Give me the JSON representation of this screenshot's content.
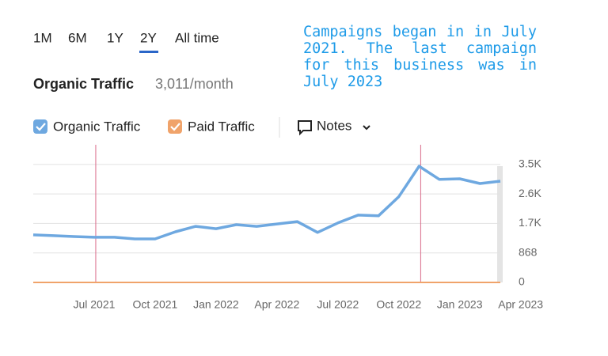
{
  "tabs": {
    "items": [
      "1M",
      "6M",
      "1Y",
      "2Y",
      "All time"
    ],
    "active": 3
  },
  "header": {
    "title": "Organic Traffic",
    "value": "3,011/month"
  },
  "annotation": "Campaigns began in in July 2021. The last campaign for this business was in July 2023",
  "notes": "Notes",
  "chart_data": {
    "type": "line",
    "x": [
      "2021-04",
      "2021-05",
      "2021-06",
      "2021-07",
      "2021-08",
      "2021-09",
      "2021-10",
      "2021-11",
      "2021-12",
      "2022-01",
      "2022-02",
      "2022-03",
      "2022-04",
      "2022-05",
      "2022-06",
      "2022-07",
      "2022-08",
      "2022-09",
      "2022-10",
      "2022-11",
      "2022-12",
      "2023-01",
      "2023-02",
      "2023-03"
    ],
    "series": [
      {
        "name": "Organic Traffic",
        "color": "#6ea8e0",
        "values": [
          1400,
          1375,
          1350,
          1330,
          1330,
          1280,
          1280,
          1490,
          1650,
          1580,
          1700,
          1650,
          1720,
          1790,
          1470,
          1750,
          1980,
          1960,
          2520,
          3420,
          3030,
          3050,
          2910,
          2980
        ]
      },
      {
        "name": "Paid Traffic",
        "color": "#f0a36a",
        "values": [
          0,
          0,
          0,
          0,
          0,
          0,
          0,
          0,
          0,
          0,
          0,
          0,
          0,
          0,
          0,
          0,
          0,
          0,
          0,
          0,
          0,
          0,
          0,
          0
        ]
      }
    ],
    "events": [
      "2021-07",
      "2022-11"
    ],
    "xlim": [
      "2021-04",
      "2023-03"
    ],
    "xticks": [
      {
        "value": "2021-07",
        "label": "Jul 2021"
      },
      {
        "value": "2021-10",
        "label": "Oct 2021"
      },
      {
        "value": "2022-01",
        "label": "Jan 2022"
      },
      {
        "value": "2022-04",
        "label": "Apr 2022"
      },
      {
        "value": "2022-07",
        "label": "Jul 2022"
      },
      {
        "value": "2022-10",
        "label": "Oct 2022"
      },
      {
        "value": "2023-01",
        "label": "Jan 2023"
      },
      {
        "value": "2023-04",
        "label": "Apr 2023"
      }
    ],
    "ylim": [
      0,
      4050
    ],
    "yticks": [
      0,
      868,
      {
        "value": 1736,
        "label": "1.7K"
      },
      {
        "value": 2604,
        "label": "2.6K"
      },
      {
        "value": 3472,
        "label": "3.5K"
      }
    ],
    "grid": true
  }
}
